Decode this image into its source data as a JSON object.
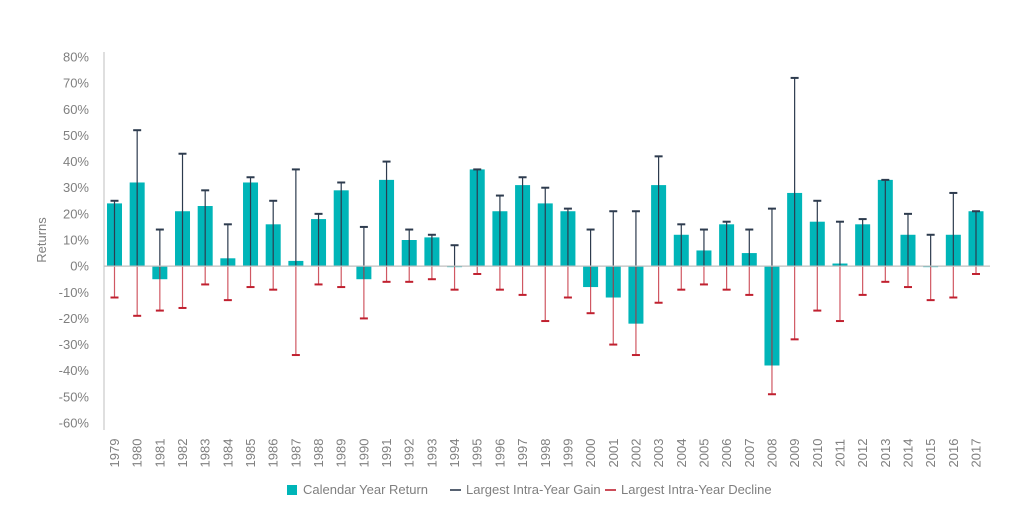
{
  "chart_data": {
    "type": "bar",
    "title": "",
    "xlabel": "",
    "ylabel": "Returns",
    "ylim": [
      -60,
      80
    ],
    "ytick_step": 10,
    "ytick_format": "percent",
    "grid": false,
    "legend_position": "bottom",
    "colors": {
      "return": "#00b5b8",
      "gain": "#2d3b4e",
      "decline": "#c0202f",
      "axis": "#bfbfbf",
      "text": "#7f7f7f"
    },
    "legend": [
      {
        "key": "return",
        "label": "Calendar Year Return",
        "marker": "square"
      },
      {
        "key": "gain",
        "label": "Largest Intra-Year Gain",
        "marker": "line"
      },
      {
        "key": "decline",
        "label": "Largest Intra-Year Decline",
        "marker": "line"
      }
    ],
    "categories": [
      "1979",
      "1980",
      "1981",
      "1982",
      "1983",
      "1984",
      "1985",
      "1986",
      "1987",
      "1988",
      "1989",
      "1990",
      "1991",
      "1992",
      "1993",
      "1994",
      "1995",
      "1996",
      "1997",
      "1998",
      "1999",
      "2000",
      "2001",
      "2002",
      "2003",
      "2004",
      "2005",
      "2006",
      "2007",
      "2008",
      "2009",
      "2010",
      "2011",
      "2012",
      "2013",
      "2014",
      "2015",
      "2016",
      "2017"
    ],
    "series": [
      {
        "name": "Calendar Year Return",
        "key": "return",
        "values": [
          24,
          32,
          -5,
          21,
          23,
          3,
          32,
          16,
          2,
          18,
          29,
          -5,
          33,
          10,
          11,
          0,
          37,
          21,
          31,
          24,
          21,
          -8,
          -12,
          -22,
          31,
          12,
          6,
          16,
          5,
          -38,
          28,
          17,
          1,
          16,
          33,
          12,
          0,
          12,
          21
        ]
      },
      {
        "name": "Largest Intra-Year Gain",
        "key": "gain",
        "values": [
          25,
          52,
          14,
          43,
          29,
          16,
          34,
          25,
          37,
          20,
          32,
          15,
          40,
          14,
          12,
          8,
          37,
          27,
          34,
          30,
          22,
          14,
          21,
          21,
          42,
          16,
          14,
          17,
          14,
          22,
          72,
          25,
          17,
          18,
          33,
          20,
          12,
          28,
          21
        ]
      },
      {
        "name": "Largest Intra-Year Decline",
        "key": "decline",
        "values": [
          -12,
          -19,
          -17,
          -16,
          -7,
          -13,
          -8,
          -9,
          -34,
          -7,
          -8,
          -20,
          -6,
          -6,
          -5,
          -9,
          -3,
          -9,
          -11,
          -21,
          -12,
          -18,
          -30,
          -34,
          -14,
          -9,
          -7,
          -9,
          -11,
          -49,
          -28,
          -17,
          -21,
          -11,
          -6,
          -8,
          -13,
          -12,
          -3
        ]
      }
    ]
  }
}
